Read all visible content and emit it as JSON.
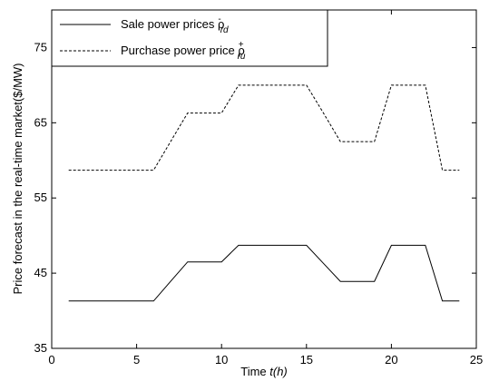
{
  "chart_data": {
    "type": "line",
    "xlabel_prefix": "Time ",
    "xlabel_unit": "t(h)",
    "ylabel": "Price forecast in the real-time market($/MW)",
    "xlim": [
      0,
      25
    ],
    "ylim": [
      35,
      80
    ],
    "xticks": [
      0,
      5,
      10,
      15,
      20,
      25
    ],
    "yticks": [
      35,
      45,
      55,
      65,
      75
    ],
    "grid": false,
    "legend_position": "top-left",
    "x": [
      1,
      2,
      3,
      4,
      5,
      6,
      7,
      8,
      9,
      10,
      11,
      12,
      13,
      14,
      15,
      16,
      17,
      18,
      19,
      20,
      21,
      22,
      23,
      24
    ],
    "series": [
      {
        "name": "Sale power prices ρ",
        "name_sub": "rd",
        "name_sup": "-",
        "style": "solid",
        "color": "#000000",
        "values": [
          41.3,
          41.3,
          41.3,
          41.3,
          41.3,
          41.3,
          43.9,
          46.5,
          46.5,
          46.5,
          48.7,
          48.7,
          48.7,
          48.7,
          48.7,
          46.3,
          43.9,
          43.9,
          43.9,
          48.7,
          48.7,
          48.7,
          41.3,
          41.3
        ]
      },
      {
        "name": "Purchase power price ρ",
        "name_sub": "ru",
        "name_sup": "+",
        "style": "dashed",
        "color": "#000000",
        "values": [
          58.7,
          58.7,
          58.7,
          58.7,
          58.7,
          58.7,
          62.5,
          66.3,
          66.3,
          66.3,
          70.0,
          70.0,
          70.0,
          70.0,
          70.0,
          66.3,
          62.5,
          62.5,
          62.5,
          70.0,
          70.0,
          70.0,
          58.7,
          58.7
        ]
      }
    ]
  }
}
